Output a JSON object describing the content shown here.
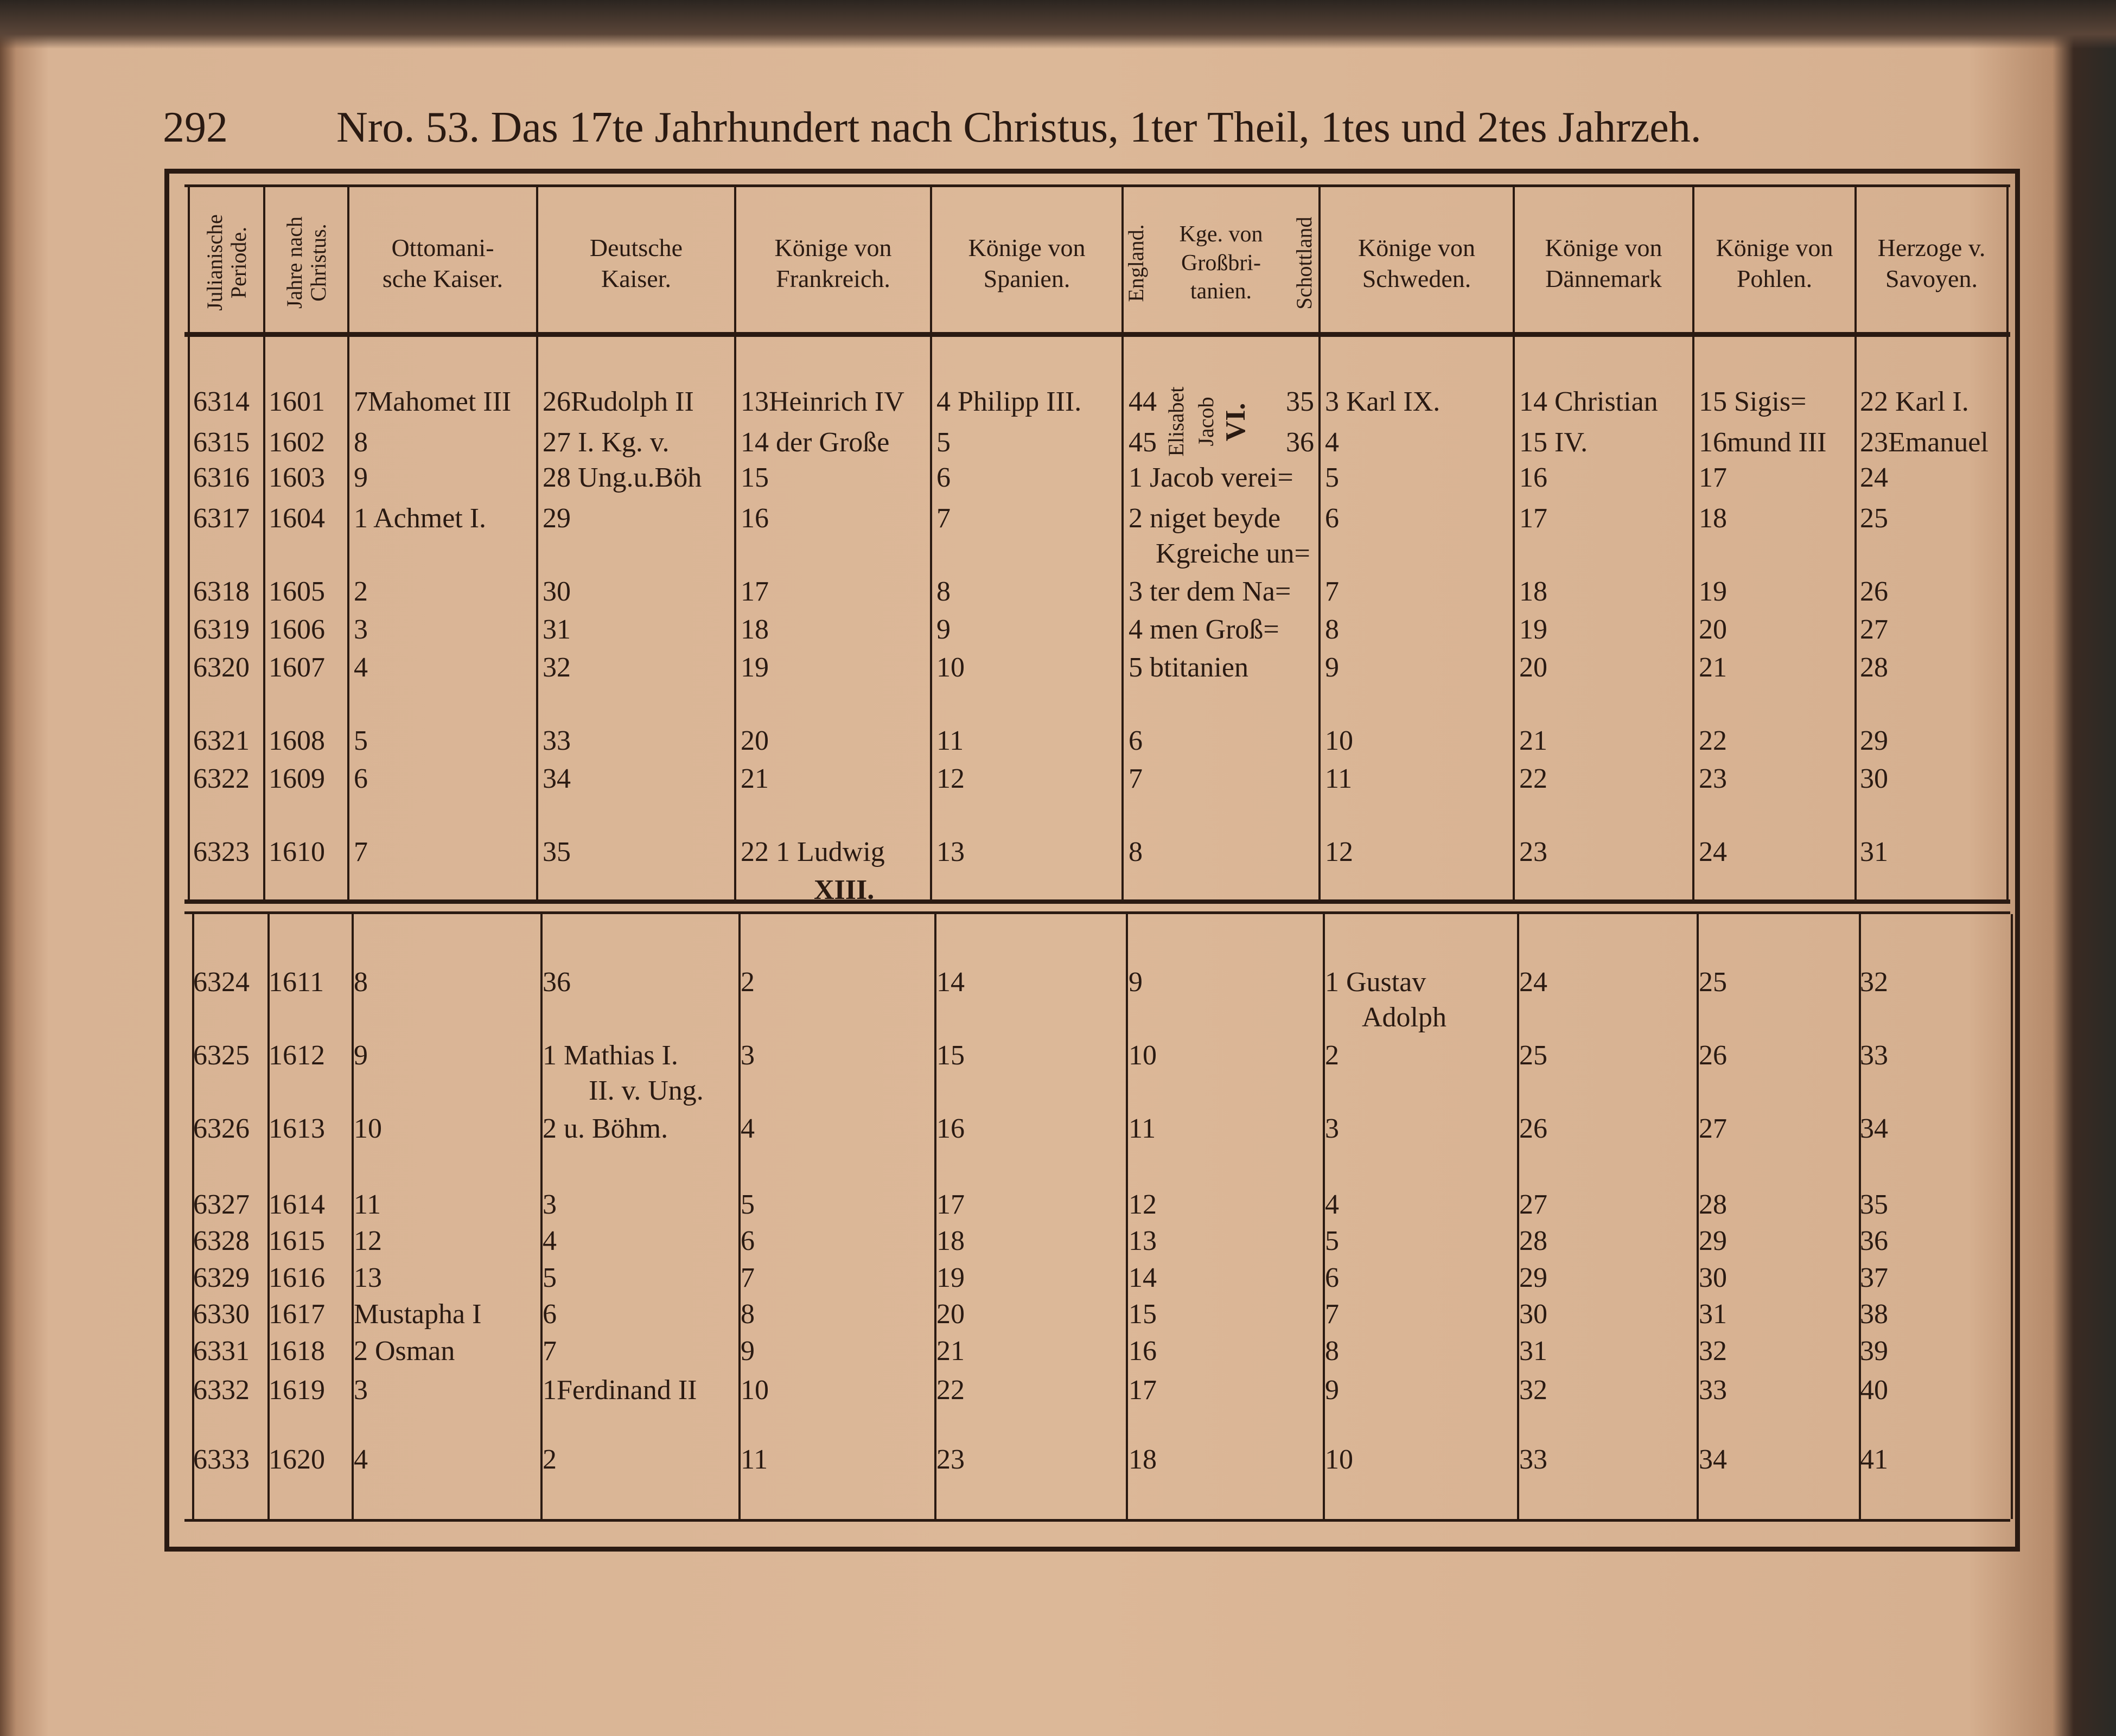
{
  "page": {
    "number": "292",
    "title": "Nro. 53. Das 17te Jahrhundert nach Christus, 1ter Theil, 1tes und 2tes Jahrzeh."
  },
  "headers": {
    "julian": "Julianische Periode.",
    "years": "Jahre nach Christus.",
    "ottoman": "Ottomani-\nsche Kaiser.",
    "german": "Deutsche\nKaiser.",
    "france": "Könige von\nFrankreich.",
    "spain": "Könige von\nSpanien.",
    "england": "England.",
    "britain": "Kge. von\nGroßbri-\ntanien.",
    "scotland": "Schottland",
    "sweden": "Könige von\nSchweden.",
    "denmark": "Könige von\nDännemark",
    "poland": "Könige von\nPohlen.",
    "savoy": "Herzoge v.\nSavoyen."
  },
  "britain_rotated": {
    "elisabet": "Elisabet",
    "jacob": "Jacob",
    "vi": "VI."
  },
  "rows": [
    [
      "6314",
      "1601",
      "7Mahomet III",
      "26Rudolph II",
      "13Heinrich IV",
      "4 Philipp III.",
      "44",
      "35",
      "3 Karl IX.",
      "14 Christian",
      "15 Sigis=",
      "22 Karl I."
    ],
    [
      "6315",
      "1602",
      "8",
      "27 I. Kg. v.",
      "14 der Große",
      "5",
      "45",
      "36",
      "4",
      "15 IV.",
      "16mund III",
      "23Emanuel"
    ],
    [
      "6316",
      "1603",
      "9",
      "28 Ung.u.Böh",
      "15",
      "6",
      "1 Jacob verei=",
      "",
      "5",
      "16",
      "17",
      "24"
    ],
    [
      "6317",
      "1604",
      "1 Achmet I.",
      "29",
      "16",
      "7",
      "2 niget beyde",
      "",
      "6",
      "17",
      "18",
      "25"
    ],
    [
      "",
      "",
      "",
      "",
      "",
      "",
      "Kgreiche un=",
      "",
      "",
      "",
      "",
      ""
    ],
    [
      "6318",
      "1605",
      "2",
      "30",
      "17",
      "8",
      "3 ter dem Na=",
      "",
      "7",
      "18",
      "19",
      "26"
    ],
    [
      "6319",
      "1606",
      "3",
      "31",
      "18",
      "9",
      "4 men Groß=",
      "",
      "8",
      "19",
      "20",
      "27"
    ],
    [
      "6320",
      "1607",
      "4",
      "32",
      "19",
      "10",
      "5 btitanien",
      "",
      "9",
      "20",
      "21",
      "28"
    ],
    [
      "6321",
      "1608",
      "5",
      "33",
      "20",
      "11",
      "6",
      "",
      "10",
      "21",
      "22",
      "29"
    ],
    [
      "6322",
      "1609",
      "6",
      "34",
      "21",
      "12",
      "7",
      "",
      "11",
      "22",
      "23",
      "30"
    ],
    [
      "6323",
      "1610",
      "7",
      "35",
      "22  1 Ludwig",
      "13",
      "8",
      "",
      "12",
      "23",
      "24",
      "31"
    ],
    [
      "",
      "",
      "",
      "",
      "XIII.",
      "",
      "",
      "",
      "",
      "",
      "",
      ""
    ],
    [
      "6324",
      "1611",
      "8",
      "36",
      "2",
      "14",
      "9",
      "",
      "1 Gustav",
      "24",
      "25",
      "32"
    ],
    [
      "",
      "",
      "",
      "",
      "",
      "",
      "",
      "",
      "Adolph",
      "",
      "",
      ""
    ],
    [
      "6325",
      "1612",
      "9",
      "1 Mathias I.",
      "3",
      "15",
      "10",
      "",
      "2",
      "25",
      "26",
      "33"
    ],
    [
      "",
      "",
      "",
      "II. v. Ung.",
      "",
      "",
      "",
      "",
      "",
      "",
      "",
      ""
    ],
    [
      "6326",
      "1613",
      "10",
      "2  u. Böhm.",
      "4",
      "16",
      "11",
      "",
      "3",
      "26",
      "27",
      "34"
    ],
    [
      "6327",
      "1614",
      "11",
      "3",
      "5",
      "17",
      "12",
      "",
      "4",
      "27",
      "28",
      "35"
    ],
    [
      "6328",
      "1615",
      "12",
      "4",
      "6",
      "18",
      "13",
      "",
      "5",
      "28",
      "29",
      "36"
    ],
    [
      "6329",
      "1616",
      "13",
      "5",
      "7",
      "19",
      "14",
      "",
      "6",
      "29",
      "30",
      "37"
    ],
    [
      "6330",
      "1617",
      "Mustapha I",
      "6",
      "8",
      "20",
      "15",
      "",
      "7",
      "30",
      "31",
      "38"
    ],
    [
      "6331",
      "1618",
      "2 Osman",
      "7",
      "9",
      "21",
      "16",
      "",
      "8",
      "31",
      "32",
      "39"
    ],
    [
      "6332",
      "1619",
      "3",
      "1Ferdinand II",
      "10",
      "22",
      "17",
      "",
      "9",
      "32",
      "33",
      "40"
    ],
    [
      "6333",
      "1620",
      "4",
      "2",
      "11",
      "23",
      "18",
      "",
      "10",
      "33",
      "34",
      "41"
    ]
  ]
}
